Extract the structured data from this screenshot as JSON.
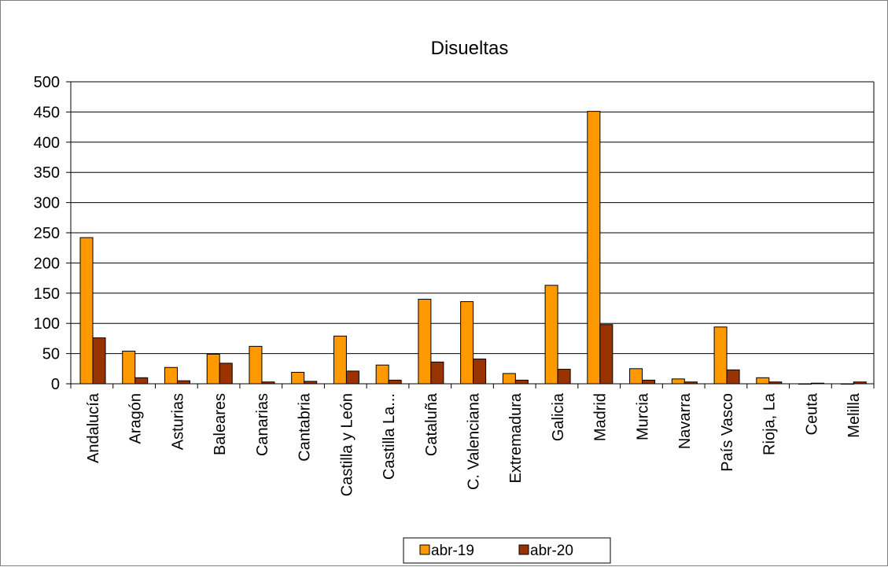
{
  "chart_data": {
    "type": "bar",
    "title": "Disueltas",
    "xlabel": "",
    "ylabel": "",
    "ylim": [
      0,
      500
    ],
    "yticks": [
      0,
      50,
      100,
      150,
      200,
      250,
      300,
      350,
      400,
      450,
      500
    ],
    "grid": true,
    "legend_position": "bottom",
    "categories": [
      "Andalucía",
      "Aragón",
      "Asturias",
      "Baleares",
      "Canarias",
      "Cantabria",
      "Castilla y León",
      "Castilla  La...",
      "Cataluña",
      "C. Valenciana",
      "Extremadura",
      "Galicia",
      "Madrid",
      "Murcia",
      "Navarra",
      "País Vasco",
      "Rioja, La",
      "Ceuta",
      "Melilla"
    ],
    "series": [
      {
        "name": "abr-19",
        "color": "#FF9900",
        "values": [
          242,
          54,
          27,
          49,
          62,
          19,
          79,
          31,
          140,
          136,
          17,
          163,
          451,
          25,
          8,
          94,
          10,
          0,
          0
        ]
      },
      {
        "name": "abr-20",
        "color": "#993300",
        "values": [
          76,
          10,
          5,
          34,
          3,
          4,
          21,
          6,
          36,
          41,
          6,
          24,
          98,
          6,
          3,
          23,
          3,
          1,
          3
        ]
      }
    ]
  }
}
